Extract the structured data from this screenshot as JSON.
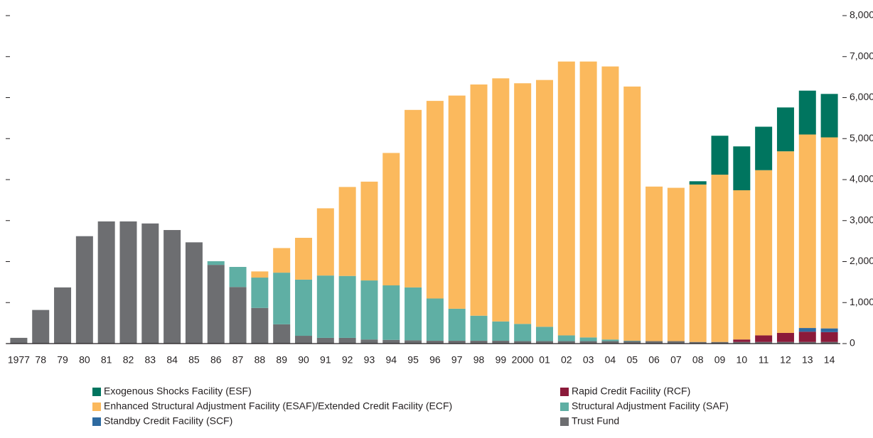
{
  "chart_data": {
    "type": "bar",
    "stacked": true,
    "categories": [
      "1977",
      "78",
      "79",
      "80",
      "81",
      "82",
      "83",
      "84",
      "85",
      "86",
      "87",
      "88",
      "89",
      "90",
      "91",
      "92",
      "93",
      "94",
      "95",
      "96",
      "97",
      "98",
      "99",
      "2000",
      "01",
      "02",
      "03",
      "04",
      "05",
      "06",
      "07",
      "08",
      "09",
      "10",
      "11",
      "12",
      "13",
      "14"
    ],
    "series": [
      {
        "name": "Exogenous Shocks Facility (ESF)",
        "color": "#00755f",
        "values": [
          0,
          0,
          0,
          0,
          0,
          0,
          0,
          0,
          0,
          0,
          0,
          0,
          0,
          0,
          0,
          0,
          0,
          0,
          0,
          0,
          0,
          0,
          0,
          0,
          0,
          0,
          0,
          0,
          0,
          0,
          0,
          80,
          950,
          1070,
          1060,
          1070,
          1070,
          1060
        ]
      },
      {
        "name": "Rapid Credit Facility (RCF)",
        "color": "#8b1a3a",
        "values": [
          0,
          0,
          0,
          0,
          0,
          0,
          0,
          0,
          0,
          0,
          0,
          0,
          0,
          0,
          0,
          0,
          0,
          0,
          0,
          0,
          0,
          0,
          0,
          0,
          0,
          0,
          0,
          0,
          0,
          0,
          0,
          0,
          0,
          60,
          160,
          220,
          250,
          240
        ]
      },
      {
        "name": "Enhanced Structural Adjustment Facility (ESAF)/Extended Credit Facility (ECF)",
        "color": "#fbb95d",
        "values": [
          0,
          0,
          0,
          0,
          0,
          0,
          0,
          0,
          0,
          0,
          0,
          150,
          600,
          1020,
          1640,
          2170,
          2410,
          3230,
          4330,
          4820,
          5200,
          5640,
          5930,
          5870,
          6020,
          6680,
          6730,
          6660,
          6200,
          3770,
          3740,
          3840,
          4080,
          3640,
          4030,
          4430,
          4720,
          4660
        ]
      },
      {
        "name": "Structural Adjustment Facility (SAF)",
        "color": "#5fafa4",
        "values": [
          0,
          0,
          0,
          0,
          0,
          0,
          0,
          0,
          0,
          90,
          490,
          740,
          1260,
          1370,
          1520,
          1510,
          1440,
          1330,
          1290,
          1030,
          780,
          610,
          470,
          420,
          350,
          140,
          90,
          40,
          10,
          0,
          0,
          0,
          0,
          0,
          0,
          0,
          0,
          0
        ]
      },
      {
        "name": "Standby Credit Facility (SCF)",
        "color": "#2e6aa0",
        "values": [
          0,
          0,
          0,
          0,
          0,
          0,
          0,
          0,
          0,
          0,
          0,
          0,
          0,
          0,
          0,
          0,
          0,
          0,
          0,
          0,
          0,
          0,
          0,
          0,
          0,
          0,
          0,
          0,
          0,
          0,
          0,
          0,
          0,
          0,
          0,
          0,
          90,
          90
        ]
      },
      {
        "name": "Trust Fund",
        "color": "#6d6e71",
        "values": [
          140,
          820,
          1370,
          2620,
          2980,
          2980,
          2930,
          2770,
          2470,
          1920,
          1380,
          870,
          470,
          190,
          140,
          140,
          100,
          90,
          80,
          70,
          70,
          70,
          70,
          60,
          60,
          60,
          60,
          60,
          60,
          60,
          60,
          40,
          40,
          40,
          40,
          40,
          40,
          40
        ]
      }
    ],
    "ylim": [
      0,
      8000
    ],
    "yticks": [
      0,
      {
        "value": 1000,
        "label": "1,000"
      },
      {
        "value": 2000,
        "label": "2,000"
      },
      {
        "value": 3000,
        "label": "3,000"
      },
      {
        "value": 4000,
        "label": "4,000"
      },
      {
        "value": 5000,
        "label": "5,000"
      },
      {
        "value": 6000,
        "label": "6,000"
      },
      {
        "value": 7000,
        "label": "7,000"
      },
      {
        "value": 8000,
        "label": "8,000"
      }
    ]
  }
}
